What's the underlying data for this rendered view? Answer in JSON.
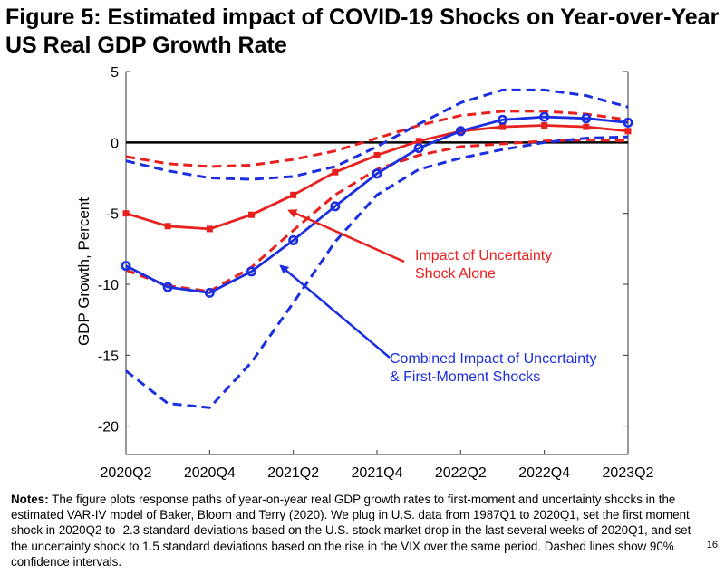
{
  "figure": {
    "title_line1": "Figure 5: Estimated impact of COVID-19 Shocks on Year-over-Year",
    "title_line2": "US Real GDP Growth Rate"
  },
  "colors": {
    "red": "#e8201e",
    "blue": "#1b2ee0",
    "axis": "#000000"
  },
  "chart_data": {
    "type": "line",
    "title": "",
    "xlabel": "",
    "ylabel": "GDP Growth, Percent",
    "ylim": [
      -22,
      5
    ],
    "yticks": [
      5,
      0,
      -5,
      -10,
      -15,
      -20
    ],
    "ytick_labels": [
      "5",
      "0",
      "-5",
      "-10",
      "-15",
      "-20"
    ],
    "x": [
      0,
      1,
      2,
      3,
      4,
      5,
      6,
      7,
      8,
      9,
      10,
      11,
      12
    ],
    "xticks": [
      0,
      2,
      4,
      6,
      8,
      10,
      12
    ],
    "xtick_labels": [
      "2020Q2",
      "2020Q4",
      "2021Q2",
      "2021Q4",
      "2022Q2",
      "2022Q4",
      "2023Q2"
    ],
    "series": [
      {
        "name": "Impact of Uncertainty Shock Alone",
        "color": "#e8201e",
        "style": "solid",
        "marker": "square",
        "values": [
          -5.0,
          -5.9,
          -6.1,
          -5.1,
          -3.7,
          -2.1,
          -0.9,
          0.1,
          0.8,
          1.1,
          1.2,
          1.1,
          0.8
        ]
      },
      {
        "name": "Uncertainty upper 90% band",
        "color": "#e8201e",
        "style": "dashed",
        "marker": "none",
        "values": [
          -1.0,
          -1.5,
          -1.7,
          -1.6,
          -1.2,
          -0.6,
          0.3,
          1.2,
          1.9,
          2.2,
          2.2,
          2.0,
          1.6
        ]
      },
      {
        "name": "Uncertainty lower 90% band",
        "color": "#e8201e",
        "style": "dashed",
        "marker": "none",
        "values": [
          -9.0,
          -10.1,
          -10.5,
          -8.8,
          -6.2,
          -3.7,
          -1.9,
          -0.9,
          -0.3,
          -0.1,
          0.1,
          0.2,
          0.1
        ]
      },
      {
        "name": "Combined Impact of Uncertainty & First-Moment Shocks",
        "color": "#1b2ee0",
        "style": "solid",
        "marker": "circle",
        "values": [
          -8.7,
          -10.2,
          -10.6,
          -9.1,
          -6.9,
          -4.5,
          -2.2,
          -0.4,
          0.8,
          1.6,
          1.8,
          1.7,
          1.4
        ]
      },
      {
        "name": "Combined upper 90% band",
        "color": "#1b2ee0",
        "style": "dashed",
        "marker": "none",
        "values": [
          -1.3,
          -2.0,
          -2.5,
          -2.6,
          -2.4,
          -1.7,
          -0.3,
          1.3,
          2.8,
          3.7,
          3.7,
          3.3,
          2.5
        ]
      },
      {
        "name": "Combined lower 90% band",
        "color": "#1b2ee0",
        "style": "dashed",
        "marker": "none",
        "values": [
          -16.1,
          -18.4,
          -18.7,
          -15.5,
          -11.3,
          -7.0,
          -3.7,
          -1.9,
          -1.1,
          -0.5,
          0.0,
          0.3,
          0.4
        ]
      }
    ],
    "annotations": [
      {
        "lines": [
          "Impact of Uncertainty",
          "Shock Alone"
        ],
        "color": "#e8201e",
        "arrow_to": [
          3.9,
          -4.8
        ]
      },
      {
        "lines": [
          "Combined Impact of Uncertainty",
          "& First-Moment Shocks"
        ],
        "color": "#1b2ee0",
        "arrow_to": [
          3.7,
          -8.7
        ]
      }
    ]
  },
  "notes": {
    "label": "Notes:",
    "text": " The figure plots response paths of year-on-year real GDP growth rates to first-moment and uncertainty shocks in the estimated VAR-IV model of Baker, Bloom and Terry (2020). We plug in U.S. data from 1987Q1 to 2020Q1, set the first moment shock in 2020Q2 to -2.3 standard deviations based on the U.S. stock market drop in the last several weeks of 2020Q1, and set the uncertainty shock to 1.5 standard deviations based on the rise in the VIX over the same period. Dashed lines show 90% confidence intervals."
  },
  "page_number": "16"
}
